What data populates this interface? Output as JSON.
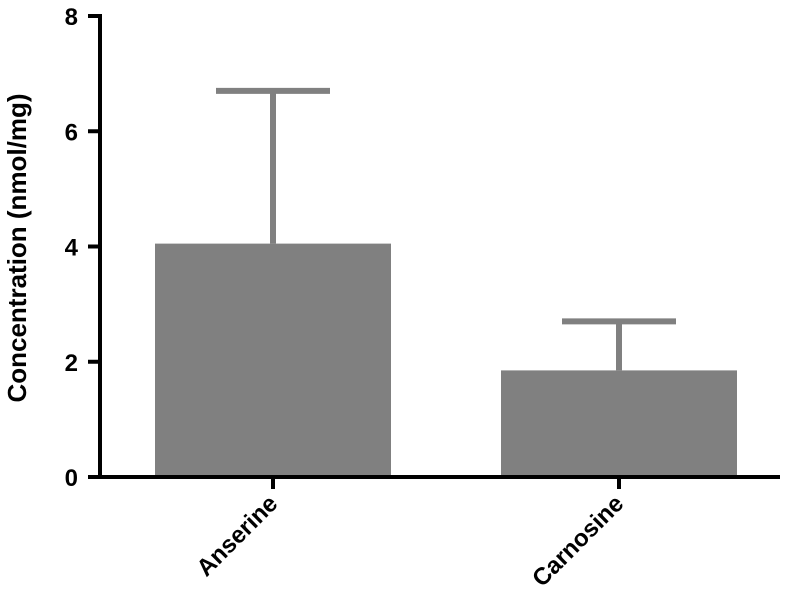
{
  "chart_data": {
    "type": "bar",
    "title": "",
    "xlabel": "",
    "ylabel": "Concentration (nmol/mg)",
    "categories": [
      "Anserine",
      "Carnosine"
    ],
    "values": [
      4.05,
      1.85
    ],
    "error_upper": [
      6.7,
      2.7
    ],
    "ylim": [
      0,
      8
    ],
    "yticks": [
      0,
      2,
      4,
      6,
      8
    ],
    "ytick_labels": [
      "0",
      "2",
      "4",
      "6",
      "8"
    ],
    "grid": false,
    "legend": "none"
  },
  "colors": {
    "bar": "#808080",
    "error_bar": "#808080",
    "axis": "#000000"
  }
}
